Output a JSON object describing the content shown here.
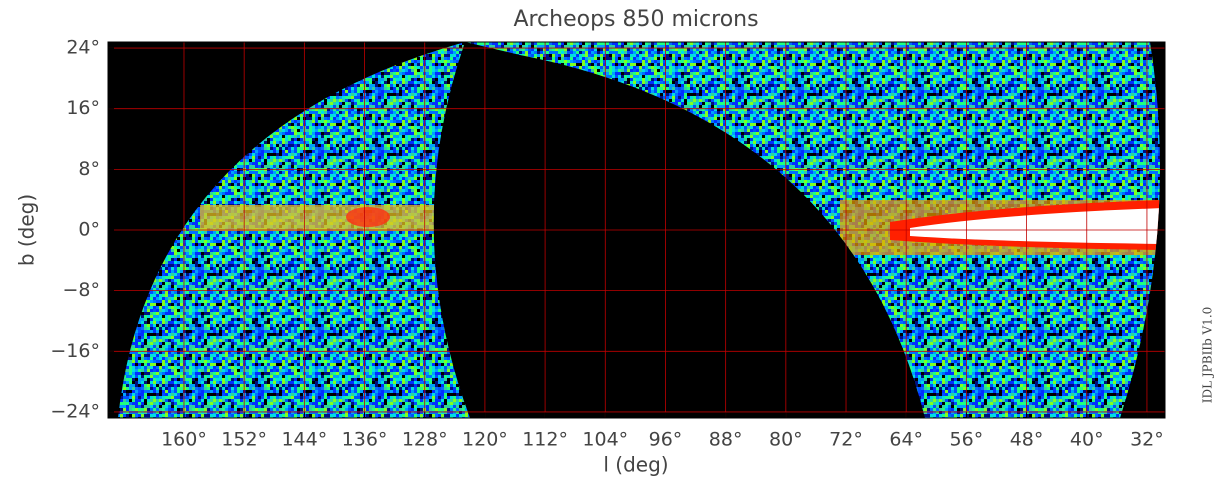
{
  "chart_data": {
    "type": "map",
    "title": "Archeops 850 microns",
    "x_label": "l (deg)",
    "y_label": "b (deg)",
    "side_note": "IDL JPBIIb V1.0",
    "xlim": [
      170.1,
      29.6
    ],
    "ylim": [
      -24.8,
      24.8
    ],
    "xticks": [
      {
        "value": 160,
        "label": "160°"
      },
      {
        "value": 152,
        "label": "152°"
      },
      {
        "value": 144,
        "label": "144°"
      },
      {
        "value": 136,
        "label": "136°"
      },
      {
        "value": 128,
        "label": "128°"
      },
      {
        "value": 120,
        "label": "120°"
      },
      {
        "value": 112,
        "label": "112°"
      },
      {
        "value": 104,
        "label": "104°"
      },
      {
        "value": 96,
        "label": "96°"
      },
      {
        "value": 88,
        "label": "88°"
      },
      {
        "value": 80,
        "label": "80°"
      },
      {
        "value": 72,
        "label": "72°"
      },
      {
        "value": 64,
        "label": "64°"
      },
      {
        "value": 56,
        "label": "56°"
      },
      {
        "value": 48,
        "label": "48°"
      },
      {
        "value": 40,
        "label": "40°"
      },
      {
        "value": 32,
        "label": "32°"
      }
    ],
    "yticks": [
      {
        "value": 24,
        "label": "24°"
      },
      {
        "value": 16,
        "label": "16°"
      },
      {
        "value": 8,
        "label": "8°"
      },
      {
        "value": 0,
        "label": "0°"
      },
      {
        "value": -8,
        "label": "−8°"
      },
      {
        "value": -16,
        "label": "−16°"
      },
      {
        "value": -24,
        "label": "−24°"
      }
    ],
    "grid": true,
    "grid_color": "#c00000"
  }
}
